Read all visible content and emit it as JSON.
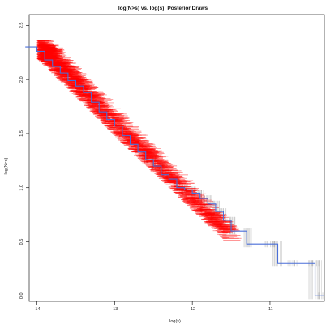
{
  "chart_data": {
    "type": "scatter",
    "title": "log(N>s) vs. log(s): Posterior Draws",
    "xlabel": "log(s)",
    "ylabel": "log(N>s)",
    "xlim": [
      -14.1,
      -10.3
    ],
    "ylim": [
      -0.05,
      2.6
    ],
    "x_ticks": [
      -14,
      -13,
      -12,
      -11
    ],
    "y_ticks": [
      0.0,
      0.5,
      1.0,
      1.5,
      2.0,
      2.5
    ],
    "x_tick_labels": [
      "-14",
      "-13",
      "-12",
      "-11"
    ],
    "y_tick_labels": [
      "0.0",
      "0.5",
      "1.0",
      "1.5",
      "2.0",
      "2.5"
    ],
    "grid": false,
    "legend": "none",
    "colors": {
      "posterior_draws": "#ff0000",
      "observed_step": "#4a6fd8",
      "uncertainty_bands": "#9a9a9a"
    },
    "series": [
      {
        "role": "posterior_draws",
        "style": "dense red scatter band",
        "centerline": {
          "x": [
            -14.0,
            -13.0,
            -12.0
          ],
          "y": [
            2.28,
            1.55,
            0.85
          ]
        },
        "band_halfwidth_start": 0.09,
        "band_halfwidth_end": 0.06
      },
      {
        "role": "observed_step",
        "style": "blue step function",
        "x": [
          -14.15,
          -14.0,
          -13.9,
          -13.8,
          -13.7,
          -13.6,
          -13.5,
          -13.4,
          -13.3,
          -13.2,
          -13.1,
          -13.0,
          -12.9,
          -12.8,
          -12.7,
          -12.6,
          -12.5,
          -12.4,
          -12.3,
          -12.2,
          -12.1,
          -12.0,
          -11.9,
          -11.8,
          -11.7,
          -11.6,
          -11.5,
          -11.3,
          -11.0,
          -10.9,
          -10.7,
          -10.45,
          -10.42,
          -10.3
        ],
        "y": [
          2.3,
          2.26,
          2.18,
          2.12,
          2.06,
          1.99,
          1.94,
          1.88,
          1.79,
          1.7,
          1.63,
          1.57,
          1.48,
          1.4,
          1.33,
          1.26,
          1.2,
          1.12,
          1.08,
          1.0,
          0.98,
          0.95,
          0.9,
          0.85,
          0.78,
          0.7,
          0.6,
          0.48,
          0.48,
          0.3,
          0.3,
          0.3,
          0.0,
          0.0
        ]
      }
    ]
  }
}
